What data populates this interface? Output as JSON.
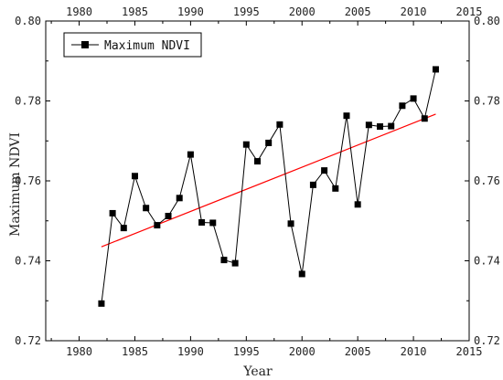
{
  "chart_data": {
    "type": "line",
    "xlabel": "Year",
    "ylabel": "Maximum NDVI",
    "xlim": [
      1977,
      2015
    ],
    "ylim": [
      0.72,
      0.8
    ],
    "x_ticks": [
      1980,
      1985,
      1990,
      1995,
      2000,
      2005,
      2010,
      2015
    ],
    "y_ticks": [
      "0.72",
      "0.74",
      "0.76",
      "0.78",
      "0.80"
    ],
    "grid": false,
    "legend_position": "top-left",
    "series": [
      {
        "name": "Maximum NDVI",
        "color": "#000000",
        "marker": "square",
        "x": [
          1982,
          1983,
          1984,
          1985,
          1986,
          1987,
          1988,
          1989,
          1990,
          1991,
          1992,
          1993,
          1994,
          1995,
          1996,
          1997,
          1998,
          1999,
          2000,
          2001,
          2002,
          2003,
          2004,
          2005,
          2006,
          2007,
          2008,
          2009,
          2010,
          2011,
          2012
        ],
        "values": [
          0.7293,
          0.7519,
          0.7482,
          0.7612,
          0.7532,
          0.7489,
          0.7512,
          0.7557,
          0.7666,
          0.7496,
          0.7495,
          0.7402,
          0.7394,
          0.7691,
          0.7649,
          0.7695,
          0.7741,
          0.7493,
          0.7367,
          0.759,
          0.7626,
          0.7581,
          0.7763,
          0.7541,
          0.774,
          0.7736,
          0.7737,
          0.7788,
          0.7806,
          0.7756,
          0.7879
        ]
      }
    ],
    "trendline": {
      "color": "#ff0000",
      "x": [
        1982,
        2012
      ],
      "values": [
        0.7435,
        0.7767
      ]
    }
  }
}
